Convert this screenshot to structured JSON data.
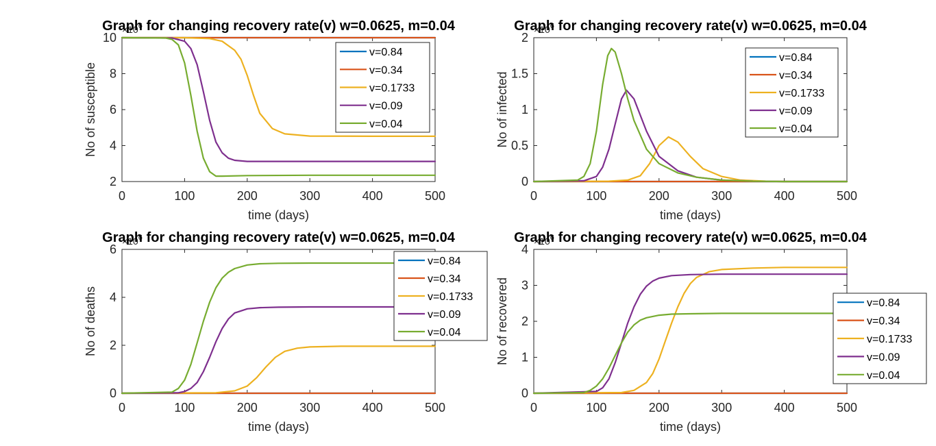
{
  "figure": {
    "background": "#ffffff",
    "axis_color": "#262626"
  },
  "series_colors": [
    "#0072BD",
    "#D95319",
    "#EDB120",
    "#7E2F8E",
    "#77AC30"
  ],
  "chart_data": [
    {
      "type": "line",
      "title": "Graph for changing recovery rate(v) w=0.0625, m=0.04",
      "xlabel": "time (days)",
      "ylabel": "No of susceptible",
      "exponent_label": "×10",
      "exponent_power": "6",
      "xlim": [
        0,
        500
      ],
      "ylim": [
        2,
        10
      ],
      "xticks": [
        0,
        100,
        200,
        300,
        400,
        500
      ],
      "xtick_labels": [
        "0",
        "100",
        "200",
        "300",
        "400",
        "500"
      ],
      "yticks": [
        2,
        4,
        6,
        8,
        10
      ],
      "ytick_labels": [
        "2",
        "4",
        "6",
        "8",
        "10"
      ],
      "grid": false,
      "legend_position": "top-right",
      "series": [
        {
          "name": "v=0.84",
          "x": [
            0,
            100,
            200,
            300,
            400,
            500
          ],
          "y": [
            10,
            10,
            10,
            10,
            10,
            10
          ]
        },
        {
          "name": "v=0.34",
          "x": [
            0,
            100,
            200,
            300,
            400,
            500
          ],
          "y": [
            10,
            10,
            10,
            10,
            10,
            10
          ]
        },
        {
          "name": "v=0.1733",
          "x": [
            0,
            100,
            140,
            160,
            180,
            190,
            200,
            210,
            220,
            240,
            260,
            300,
            400,
            500
          ],
          "y": [
            10,
            10,
            9.95,
            9.8,
            9.3,
            8.8,
            7.9,
            6.8,
            5.8,
            4.95,
            4.65,
            4.53,
            4.52,
            4.52
          ]
        },
        {
          "name": "v=0.09",
          "x": [
            0,
            80,
            100,
            110,
            120,
            130,
            140,
            150,
            160,
            170,
            180,
            200,
            300,
            500
          ],
          "y": [
            10,
            9.98,
            9.8,
            9.4,
            8.5,
            7.0,
            5.4,
            4.2,
            3.6,
            3.3,
            3.18,
            3.12,
            3.12,
            3.12
          ]
        },
        {
          "name": "v=0.04",
          "x": [
            0,
            70,
            80,
            90,
            100,
            110,
            120,
            130,
            140,
            150,
            160,
            200,
            300,
            500
          ],
          "y": [
            10,
            9.98,
            9.9,
            9.6,
            8.6,
            6.8,
            4.8,
            3.3,
            2.55,
            2.3,
            2.3,
            2.33,
            2.35,
            2.35
          ]
        }
      ]
    },
    {
      "type": "line",
      "title": "Graph for changing recovery rate(v) w=0.0625, m=0.04",
      "xlabel": "time (days)",
      "ylabel": "No of infected",
      "exponent_label": "×10",
      "exponent_power": "6",
      "xlim": [
        0,
        500
      ],
      "ylim": [
        0,
        2
      ],
      "xticks": [
        0,
        100,
        200,
        300,
        400,
        500
      ],
      "xtick_labels": [
        "0",
        "100",
        "200",
        "300",
        "400",
        "500"
      ],
      "yticks": [
        0,
        0.5,
        1,
        1.5,
        2
      ],
      "ytick_labels": [
        "0",
        "0.5",
        "1",
        "1.5",
        "2"
      ],
      "grid": false,
      "legend_position": "top-right",
      "series": [
        {
          "name": "v=0.84",
          "x": [
            0,
            100,
            200,
            300,
            400,
            500
          ],
          "y": [
            0,
            0,
            0,
            0,
            0,
            0
          ]
        },
        {
          "name": "v=0.34",
          "x": [
            0,
            100,
            200,
            300,
            400,
            500
          ],
          "y": [
            0,
            0,
            0,
            0,
            0,
            0
          ]
        },
        {
          "name": "v=0.1733",
          "x": [
            0,
            120,
            150,
            170,
            185,
            200,
            215,
            230,
            250,
            270,
            300,
            330,
            370,
            400,
            500
          ],
          "y": [
            0,
            0.005,
            0.02,
            0.08,
            0.25,
            0.5,
            0.62,
            0.55,
            0.35,
            0.18,
            0.07,
            0.02,
            0.005,
            0,
            0
          ]
        },
        {
          "name": "v=0.09",
          "x": [
            0,
            80,
            100,
            110,
            120,
            130,
            140,
            148,
            160,
            180,
            200,
            230,
            260,
            300,
            350,
            400,
            500
          ],
          "y": [
            0,
            0.01,
            0.07,
            0.2,
            0.45,
            0.8,
            1.15,
            1.27,
            1.15,
            0.7,
            0.35,
            0.15,
            0.06,
            0.02,
            0.005,
            0,
            0
          ]
        },
        {
          "name": "v=0.04",
          "x": [
            0,
            70,
            80,
            90,
            100,
            110,
            118,
            124,
            130,
            140,
            150,
            160,
            180,
            200,
            230,
            260,
            300,
            350,
            400,
            500
          ],
          "y": [
            0,
            0.02,
            0.07,
            0.25,
            0.7,
            1.35,
            1.75,
            1.85,
            1.8,
            1.5,
            1.15,
            0.85,
            0.45,
            0.25,
            0.12,
            0.06,
            0.02,
            0.005,
            0,
            0
          ]
        }
      ]
    },
    {
      "type": "line",
      "title": "Graph for changing recovery rate(v) w=0.0625, m=0.04",
      "xlabel": "time (days)",
      "ylabel": "No of deaths",
      "exponent_label": "×10",
      "exponent_power": "6",
      "xlim": [
        0,
        500
      ],
      "ylim": [
        0,
        6
      ],
      "xticks": [
        0,
        100,
        200,
        300,
        400,
        500
      ],
      "xtick_labels": [
        "0",
        "100",
        "200",
        "300",
        "400",
        "500"
      ],
      "yticks": [
        0,
        2,
        4,
        6
      ],
      "ytick_labels": [
        "0",
        "2",
        "4",
        "6"
      ],
      "grid": false,
      "legend_position": "top-right",
      "series": [
        {
          "name": "v=0.84",
          "x": [
            0,
            100,
            200,
            300,
            400,
            500
          ],
          "y": [
            0,
            0,
            0,
            0,
            0,
            0
          ]
        },
        {
          "name": "v=0.34",
          "x": [
            0,
            100,
            200,
            300,
            400,
            500
          ],
          "y": [
            0,
            0,
            0,
            0,
            0,
            0
          ]
        },
        {
          "name": "v=0.1733",
          "x": [
            0,
            150,
            180,
            200,
            215,
            230,
            245,
            260,
            280,
            300,
            350,
            400,
            500
          ],
          "y": [
            0,
            0.02,
            0.1,
            0.3,
            0.65,
            1.1,
            1.5,
            1.75,
            1.88,
            1.93,
            1.96,
            1.96,
            1.96
          ]
        },
        {
          "name": "v=0.09",
          "x": [
            0,
            90,
            100,
            110,
            120,
            130,
            140,
            150,
            160,
            170,
            180,
            200,
            220,
            250,
            300,
            400,
            500
          ],
          "y": [
            0,
            0.02,
            0.07,
            0.2,
            0.45,
            0.9,
            1.5,
            2.15,
            2.7,
            3.1,
            3.35,
            3.52,
            3.57,
            3.59,
            3.6,
            3.6,
            3.6
          ]
        },
        {
          "name": "v=0.04",
          "x": [
            0,
            80,
            90,
            100,
            110,
            120,
            130,
            140,
            150,
            160,
            170,
            180,
            200,
            220,
            250,
            300,
            400,
            500
          ],
          "y": [
            0,
            0.05,
            0.2,
            0.55,
            1.2,
            2.1,
            3.0,
            3.8,
            4.4,
            4.8,
            5.05,
            5.2,
            5.35,
            5.4,
            5.42,
            5.43,
            5.43,
            5.43
          ]
        }
      ]
    },
    {
      "type": "line",
      "title": "Graph for changing recovery rate(v) w=0.0625, m=0.04",
      "xlabel": "time (days)",
      "ylabel": "No of recovered",
      "exponent_label": "×10",
      "exponent_power": "6",
      "xlim": [
        0,
        500
      ],
      "ylim": [
        0,
        4
      ],
      "xticks": [
        0,
        100,
        200,
        300,
        400,
        500
      ],
      "xtick_labels": [
        "0",
        "100",
        "200",
        "300",
        "400",
        "500"
      ],
      "yticks": [
        0,
        1,
        2,
        3,
        4
      ],
      "ytick_labels": [
        "0",
        "1",
        "2",
        "3",
        "4"
      ],
      "grid": false,
      "legend_position": "right",
      "series": [
        {
          "name": "v=0.84",
          "x": [
            0,
            100,
            200,
            300,
            400,
            500
          ],
          "y": [
            0,
            0,
            0,
            0,
            0,
            0
          ]
        },
        {
          "name": "v=0.34",
          "x": [
            0,
            100,
            200,
            300,
            400,
            500
          ],
          "y": [
            0,
            0,
            0,
            0,
            0,
            0
          ]
        },
        {
          "name": "v=0.1733",
          "x": [
            0,
            140,
            160,
            180,
            190,
            200,
            210,
            220,
            230,
            240,
            250,
            260,
            280,
            300,
            350,
            400,
            500
          ],
          "y": [
            0,
            0.02,
            0.08,
            0.3,
            0.55,
            0.95,
            1.45,
            1.95,
            2.4,
            2.78,
            3.05,
            3.22,
            3.38,
            3.44,
            3.48,
            3.5,
            3.5
          ]
        },
        {
          "name": "v=0.09",
          "x": [
            0,
            100,
            110,
            120,
            130,
            140,
            150,
            160,
            170,
            180,
            190,
            200,
            220,
            250,
            300,
            400,
            500
          ],
          "y": [
            0,
            0.05,
            0.15,
            0.4,
            0.85,
            1.4,
            1.95,
            2.4,
            2.75,
            2.98,
            3.12,
            3.2,
            3.27,
            3.3,
            3.31,
            3.31,
            3.31
          ]
        },
        {
          "name": "v=0.04",
          "x": [
            0,
            80,
            90,
            100,
            110,
            120,
            130,
            140,
            150,
            160,
            170,
            180,
            200,
            220,
            250,
            300,
            400,
            500
          ],
          "y": [
            0,
            0.02,
            0.08,
            0.2,
            0.4,
            0.7,
            1.05,
            1.4,
            1.7,
            1.9,
            2.03,
            2.1,
            2.17,
            2.2,
            2.21,
            2.22,
            2.22,
            2.22
          ]
        }
      ]
    }
  ]
}
